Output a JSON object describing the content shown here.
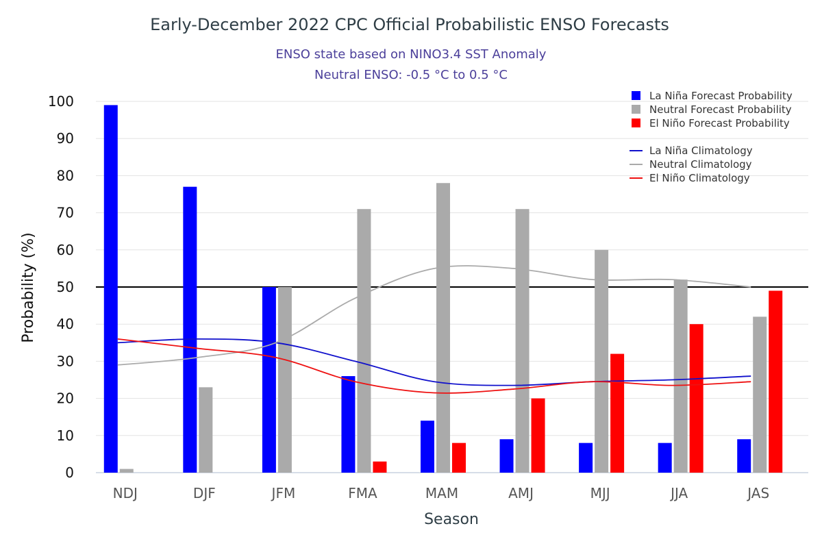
{
  "chart_data": {
    "type": "bar",
    "title": "Early-December 2022 CPC Official Probabilistic ENSO Forecasts",
    "subtitle": "ENSO state based on NINO3.4 SST Anomaly",
    "subtitle2": "Neutral ENSO: -0.5 °C to 0.5 °C",
    "xlabel": "Season",
    "ylabel": "Probability (%)",
    "ylim": [
      0,
      100
    ],
    "yticks": [
      "0",
      "10",
      "20",
      "30",
      "40",
      "50",
      "60",
      "70",
      "80",
      "90",
      "100"
    ],
    "reference_line": 50,
    "categories": [
      "NDJ",
      "DJF",
      "JFM",
      "FMA",
      "MAM",
      "AMJ",
      "MJJ",
      "JJA",
      "JAS"
    ],
    "series": [
      {
        "name": "La Niña Forecast Probability",
        "color": "#0000ff",
        "values": [
          99,
          77,
          50,
          26,
          14,
          9,
          8,
          8,
          9
        ]
      },
      {
        "name": "Neutral Forecast Probability",
        "color": "#aaaaaa",
        "values": [
          1,
          23,
          50,
          71,
          78,
          71,
          60,
          52,
          42
        ]
      },
      {
        "name": "El Niño Forecast Probability",
        "color": "#ff0000",
        "values": [
          0,
          0,
          0,
          3,
          8,
          20,
          32,
          40,
          49
        ]
      }
    ],
    "climatology": [
      {
        "name": "La Niña Climatology",
        "color": "#1010cc",
        "values": [
          35,
          36,
          35,
          30,
          24.5,
          23.5,
          24.5,
          25,
          26
        ]
      },
      {
        "name": "Neutral Climatology",
        "color": "#aaaaaa",
        "values": [
          29,
          31,
          35,
          47,
          55,
          55,
          52,
          52,
          50
        ]
      },
      {
        "name": "El Niño Climatology",
        "color": "#ee1111",
        "values": [
          36,
          33.5,
          31,
          24.5,
          21.5,
          22.5,
          24.5,
          23.5,
          24.5
        ]
      }
    ],
    "legend_position": "top-right"
  }
}
